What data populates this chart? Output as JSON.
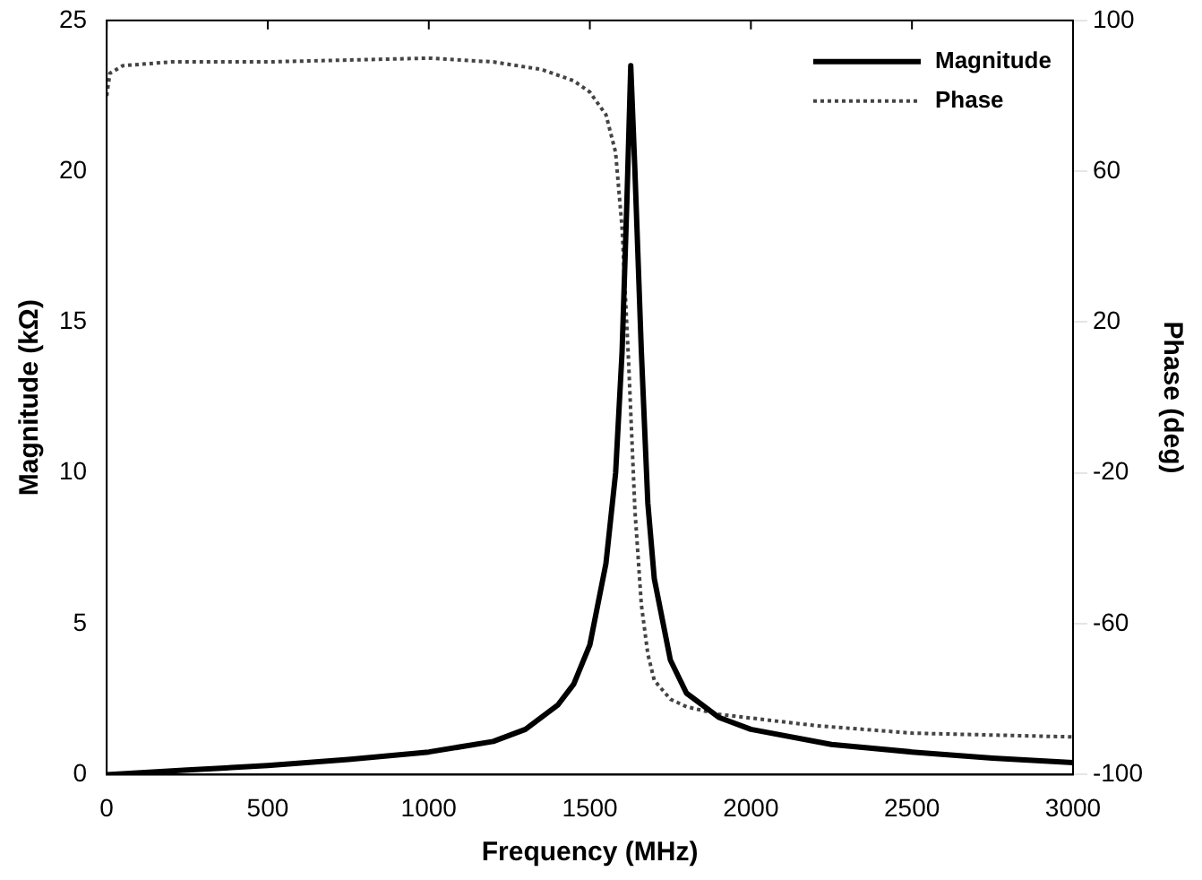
{
  "chart_data": {
    "type": "line",
    "xlabel": "Frequency (MHz)",
    "ylabel": "Magnitude (kΩ)",
    "y2label": "Phase (deg)",
    "xlim": [
      0,
      3000
    ],
    "xticks": [
      0,
      500,
      1000,
      1500,
      2000,
      2500,
      3000
    ],
    "ylim": [
      0,
      25
    ],
    "yticks": [
      0,
      5,
      10,
      15,
      20,
      25
    ],
    "y2lim": [
      -100,
      100
    ],
    "y2ticks": [
      -100,
      -60,
      -20,
      20,
      60,
      100
    ],
    "grid": false,
    "legend": "top right",
    "marker": "none",
    "series": [
      {
        "name": "Magnitude",
        "color": "#000000",
        "line_style": "solid",
        "x": [
          0,
          250,
          500,
          750,
          1000,
          1200,
          1300,
          1400,
          1450,
          1500,
          1550,
          1580,
          1600,
          1615,
          1627,
          1640,
          1660,
          1680,
          1700,
          1750,
          1800,
          1900,
          2000,
          2250,
          2500,
          2750,
          3000
        ],
        "values": [
          0,
          0.15,
          0.3,
          0.5,
          0.75,
          1.1,
          1.5,
          2.3,
          3,
          4.3,
          7,
          10,
          14,
          19,
          23.5,
          20,
          14,
          9,
          6.5,
          3.8,
          2.7,
          1.9,
          1.5,
          1.0,
          0.75,
          0.55,
          0.4
        ]
      },
      {
        "name": "Phase",
        "color": "#444444",
        "line_style": "dotted",
        "axis": "y2",
        "x": [
          0,
          10,
          50,
          200,
          500,
          1000,
          1200,
          1350,
          1450,
          1500,
          1550,
          1580,
          1600,
          1620,
          1640,
          1660,
          1680,
          1700,
          1750,
          1800,
          1900,
          2000,
          2200,
          2500,
          3000
        ],
        "values": [
          80,
          86,
          88,
          89,
          89,
          90,
          89,
          87,
          84,
          81,
          75,
          65,
          45,
          10,
          -30,
          -55,
          -68,
          -75,
          -80,
          -82,
          -84,
          -85,
          -87,
          -89,
          -90
        ]
      }
    ]
  }
}
